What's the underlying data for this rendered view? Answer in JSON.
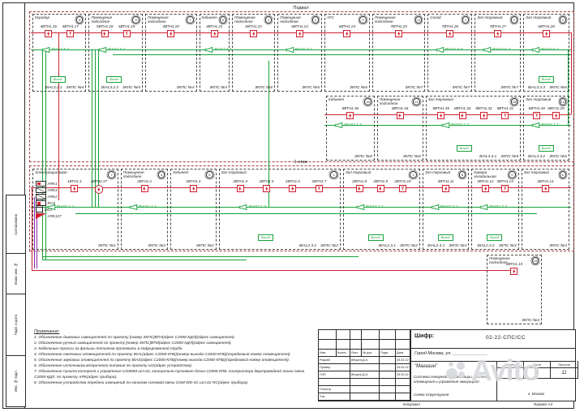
{
  "frame": {
    "side_labels": [
      "Согласовано",
      "Взам. инв. №",
      "Подп. и дата",
      "Инв. № подл."
    ]
  },
  "labels": {
    "exit": "Выход"
  },
  "colors": {
    "loop_red": "#cf2030",
    "notify_green": "#17a23a",
    "interface_purple": "#8a2bb0",
    "section_dashed_red": "#a04040"
  },
  "sections": [
    {
      "title": "Подвал",
      "rows": [
        {
          "rooms": [
            {
              "name": "Коридор",
              "num": "8",
              "zkps": "ЗКПС №4",
              "bial": "BIAL3.2.1",
              "sounder": "BIAS2.5.3",
              "detectors": [
                {
                  "label": "4ВТН1.16",
                  "type": "smoke"
                },
                {
                  "label": "4ВТН1.17",
                  "type": "manual"
                }
              ]
            },
            {
              "name": "Помещение подсобное",
              "num": "6",
              "zkps": "ЗКПС №5",
              "bial": "BIAL3.2.2",
              "sounder": "BIAS2.5.2",
              "detectors": [
                {
                  "label": "5ВТН1.18",
                  "type": "smoke"
                },
                {
                  "label": "5ВТН1.19",
                  "type": "manual"
                }
              ]
            },
            {
              "name": "Помещение подсобное",
              "num": "7",
              "zkps": "ЗКПС №4",
              "detectors": [
                {
                  "label": "4ВТН1.20",
                  "type": "smoke"
                }
              ]
            },
            {
              "name": "Кабинет",
              "num": "9",
              "zkps": "ЗКПС №4",
              "sounder": "BIAS2.5.1",
              "detectors": [
                {
                  "label": "4ВТН1.21",
                  "type": "smoke"
                }
              ]
            },
            {
              "name": "Помещение подсобное",
              "num": "2",
              "zkps": "ЗКПС №6",
              "detectors": [
                {
                  "label": "6ВТН1.22",
                  "type": "smoke"
                }
              ]
            },
            {
              "name": "Помещение подсобное",
              "num": "3",
              "zkps": "ЗКПС №6",
              "sounder": "BIAS2.6.1",
              "detectors": [
                {
                  "label": "6ВТН1.23",
                  "type": "smoke"
                }
              ]
            },
            {
              "name": "АТС",
              "num": "5",
              "zkps": "ЗКПС №6",
              "detectors": [
                {
                  "label": "6ВТН1.24",
                  "type": "smoke"
                }
              ]
            },
            {
              "name": "Помещение подсобное",
              "num": "11",
              "zkps": "ЗКПС №7",
              "detectors": [
                {
                  "label": "7ВТН1.25",
                  "type": "smoke"
                }
              ]
            },
            {
              "name": "Склад",
              "num": "1",
              "zkps": "ЗКПС №7",
              "sounder": "BIAS2.6.4",
              "detectors": [
                {
                  "label": "7ВТН1.26",
                  "type": "smoke"
                }
              ]
            },
            {
              "name": "Зал торговый",
              "num": "2",
              "zkps": "ЗКПС №7",
              "sounder": "BIAS2.6.3",
              "detectors": [
                {
                  "label": "7ВТН1.27",
                  "type": "smoke"
                }
              ]
            },
            {
              "name": "Зал торговый",
              "num": "3",
              "zkps": "ЗКПС №6",
              "bial": "BIAL3.3.3",
              "sounder": "BIAS2.6.2",
              "detectors": [
                {
                  "label": "6ВТН1.28",
                  "type": "smoke"
                }
              ]
            }
          ]
        },
        {
          "rooms": [
            {
              "name": "Кабинет",
              "num": "16",
              "zkps": "ЗКПС №8",
              "sounder": "BIAS3.1.3",
              "detectors": [
                {
                  "label": "8ВТН1.36",
                  "type": "smoke"
                }
              ]
            },
            {
              "name": "Помещение подсобное",
              "num": "14",
              "zkps": "ЗКПС №8",
              "detectors": [
                {
                  "label": "8ВТН1.34",
                  "type": "smoke"
                }
              ]
            },
            {
              "name": "Зал торговый",
              "num": "15",
              "zkps": "ЗКПС №8",
              "bial": "BIAL3.3.1",
              "sounder": "BIAS3.1.2",
              "detectors": [
                {
                  "label": "8ВТН1.35",
                  "type": "smoke"
                },
                {
                  "label": "8ВТН1.33",
                  "type": "smoke"
                },
                {
                  "label": "8ВТН1.32",
                  "type": "smoke"
                },
                {
                  "label": "8ВТН1.31",
                  "type": "manual"
                }
              ]
            },
            {
              "name": "Зал торговый",
              "num": "13",
              "zkps": "ЗКПС №6",
              "bial": "BIAL3.3.2",
              "sounder": "BIAS3.1.1",
              "detectors": [
                {
                  "label": "6ВТН1.30",
                  "type": "manual"
                },
                {
                  "label": "6ВТН1.29",
                  "type": "smoke"
                }
              ]
            }
          ]
        }
      ]
    },
    {
      "title": "1 этаж",
      "rows": [
        {
          "rooms": [
            {
              "name": "Электрощитовая",
              "num": "7",
              "zkps": "ЗКПС №1",
              "sounder": "BIAS2.1.1",
              "detectors": [
                {
                  "label": "1ВТН1.1",
                  "type": "smoke"
                },
                {
                  "label": "1ВТН2.37",
                  "type": "heat"
                }
              ],
              "devices": [
                {
                  "label": "ARK1",
                  "symbol": "panel-red"
                },
                {
                  "label": "ARK3",
                  "symbol": "panel"
                },
                {
                  "label": "ARK2",
                  "symbol": "panel"
                },
                {
                  "label": "RCS",
                  "symbol": "rcs"
                },
                {
                  "label": "UG4",
                  "symbol": "psu"
                },
                {
                  "label": "ARK127",
                  "symbol": "flag"
                }
              ]
            },
            {
              "name": "Помещение подсобное",
              "num": "4",
              "zkps": "ЗКПС №2",
              "sounder": "BIAS2.1.2",
              "detectors": [
                {
                  "label": "2ВТН1.2",
                  "type": "smoke"
                }
              ]
            },
            {
              "name": "Кабинет",
              "num": "5",
              "zkps": "ЗКПС №2",
              "detectors": [
                {
                  "label": "2ВТН1.3",
                  "type": "smoke"
                }
              ]
            },
            {
              "name": "Зал торговый",
              "num": "1",
              "zkps": "ЗКПС №2",
              "bial": "BIAL2.3.2",
              "sounder": "BIAS2.1.3",
              "detectors": [
                {
                  "label": "2ВТН1.4",
                  "type": "smoke"
                },
                {
                  "label": "2ВТН1.5",
                  "type": "smoke"
                },
                {
                  "label": "2ВТН1.6",
                  "type": "smoke"
                },
                {
                  "label": "2ВТН1.7",
                  "type": "manual"
                }
              ]
            },
            {
              "name": "Зал торговый",
              "num": "2",
              "zkps": "ЗКПС №2",
              "bial": "BIAL2.3.1",
              "sounder": "BIAS2.2.1",
              "detectors": [
                {
                  "label": "2ВТН1.8",
                  "type": "smoke"
                },
                {
                  "label": "2ВТН1.9",
                  "type": "smoke"
                },
                {
                  "label": "2ВТН1.10",
                  "type": "manual"
                }
              ]
            },
            {
              "name": "Зал торговый",
              "num": "8",
              "zkps": "ЗКПС №3",
              "bial": "BIAL2.4.1",
              "sounder": "BIAS2.2.2",
              "detectors": [
                {
                  "label": "3ВТН1.11",
                  "type": "smoke"
                }
              ]
            },
            {
              "name": "Камера холодильная",
              "num": "9",
              "zkps": "ЗКПС №3",
              "bial": "BIAL2.4.2",
              "sounder": "BIAS2.2.3",
              "detectors": [
                {
                  "label": "3ВТН1.12",
                  "type": "smoke"
                },
                {
                  "label": "3ВТН1.13",
                  "type": "manual"
                }
              ]
            },
            {
              "name": "Зал торговый",
              "num": "6",
              "zkps": "ЗКПС №3",
              "detectors": [
                {
                  "label": "3ВТН1.14",
                  "type": "smoke"
                }
              ]
            }
          ]
        }
      ]
    }
  ],
  "extra_room": {
    "name": "Помещение подсобное",
    "num": "15",
    "zkps": "ЗКПС №3",
    "detectors": [
      {
        "label": "3ВТН1.15",
        "type": "smoke"
      }
    ]
  },
  "notes": {
    "title": "Примечания:",
    "items": [
      "Обозначение дымовых извещателей по проекту [номер ЗКПС]ВТН(адрес С2000-КДЛ)(адрес извещателя).",
      "Обозначение ручных извещателей по проекту [номер ЗКПС]ВТМ(адрес С2000-КДЛ)(адрес извещателя).",
      "Кабельные трассы за фальшь-потолком проложить в гофрированной трубе.",
      "Обозначение световых оповещателей по проекту BIAL(адрес С2000-КПБ)(номер выхода С2000-КПБ)(порядковый номер оповещателя).",
      "Обозначение звуковых оповещателей по проекту BIAS(адрес С2000-КПБ)(номер выхода С2000-КПБ)(порядковый номер оповещателя).",
      "Обозначение источников вторичного питания по проекту UG(адрес устройства).",
      "Обозначение пульта контроля и управления С2000М исп.02, контрольно-пускового блока С2000-КПБ, контроллера двухпроводной линии связи С2000-КДЛ, по проекту ARK(адрес прибора).",
      "Обозначение устройства передачи извещений по каналам сотовой связи GSM WD-4C исп.02 RC(адрес прибора)."
    ]
  },
  "titleblock": {
    "code_label": "Шифр:",
    "code": "02-22-СПС/СС",
    "address": "Город Москва, ул. ______________",
    "object": "\"Магазин\"",
    "doc_title_1": "Система пожарной сигнализации, система оповещения и управления эвакуацией",
    "doc_title_2": "Схема структурная",
    "stage_label": "Стадия",
    "stage": "Р",
    "sheet_label": "Лист",
    "sheet": "4",
    "sheets_label": "Листов",
    "sheets": "11",
    "city": "г. Москва",
    "copied_label": "Копировал",
    "format_label": "Формат А3",
    "header_cols": [
      "Изм.",
      "Колич.",
      "Лист",
      "№ док.",
      "Подп.",
      "Дата"
    ],
    "rows": [
      {
        "role": "Разраб.",
        "name": "Вецков Д.А.",
        "date": "25.02.22"
      },
      {
        "role": "Провер.",
        "name": "",
        "date": "25.02.22"
      },
      {
        "role": "ГИП",
        "name": "Вецков Д.А.",
        "date": "25.02.22"
      },
      {
        "role": "",
        "name": "",
        "date": ""
      },
      {
        "role": "Н.Контр.",
        "name": "",
        "date": ""
      },
      {
        "role": "Утв.",
        "name": "",
        "date": ""
      }
    ]
  },
  "watermark": {
    "text": "Avito"
  }
}
